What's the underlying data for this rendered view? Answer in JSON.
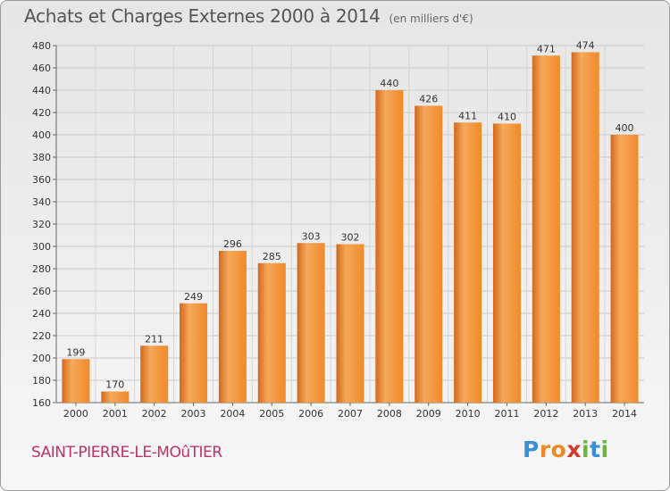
{
  "chart_data": {
    "type": "bar",
    "title": "Achats et Charges Externes 2000 à 2014",
    "unit_label": "(en milliers d'€)",
    "categories": [
      "2000",
      "2001",
      "2002",
      "2003",
      "2004",
      "2005",
      "2006",
      "2007",
      "2008",
      "2009",
      "2010",
      "2011",
      "2012",
      "2013",
      "2014"
    ],
    "values": [
      199,
      170,
      211,
      249,
      296,
      285,
      303,
      302,
      440,
      426,
      411,
      410,
      471,
      474,
      400
    ],
    "xlabel": "",
    "ylabel": "",
    "ylim": [
      160,
      480
    ],
    "yticks": [
      160,
      180,
      200,
      220,
      240,
      260,
      280,
      300,
      320,
      340,
      360,
      380,
      400,
      420,
      440,
      460,
      480
    ],
    "grid": true,
    "bar_color": "#f08a2a",
    "bar_color_light": "#f6a85a",
    "bar_color_dark": "#d2691c"
  },
  "footer": {
    "commune": "SAINT-PIERRE-LE-MOûTIER",
    "brand": {
      "letters": [
        "P",
        "r",
        "o",
        "x",
        "i",
        "t",
        "i"
      ],
      "colors": [
        "#3a8fd6",
        "#e98b2a",
        "#e98b2a",
        "#d23a2a",
        "#6db33f",
        "#3a8fd6",
        "#6db33f"
      ]
    }
  }
}
